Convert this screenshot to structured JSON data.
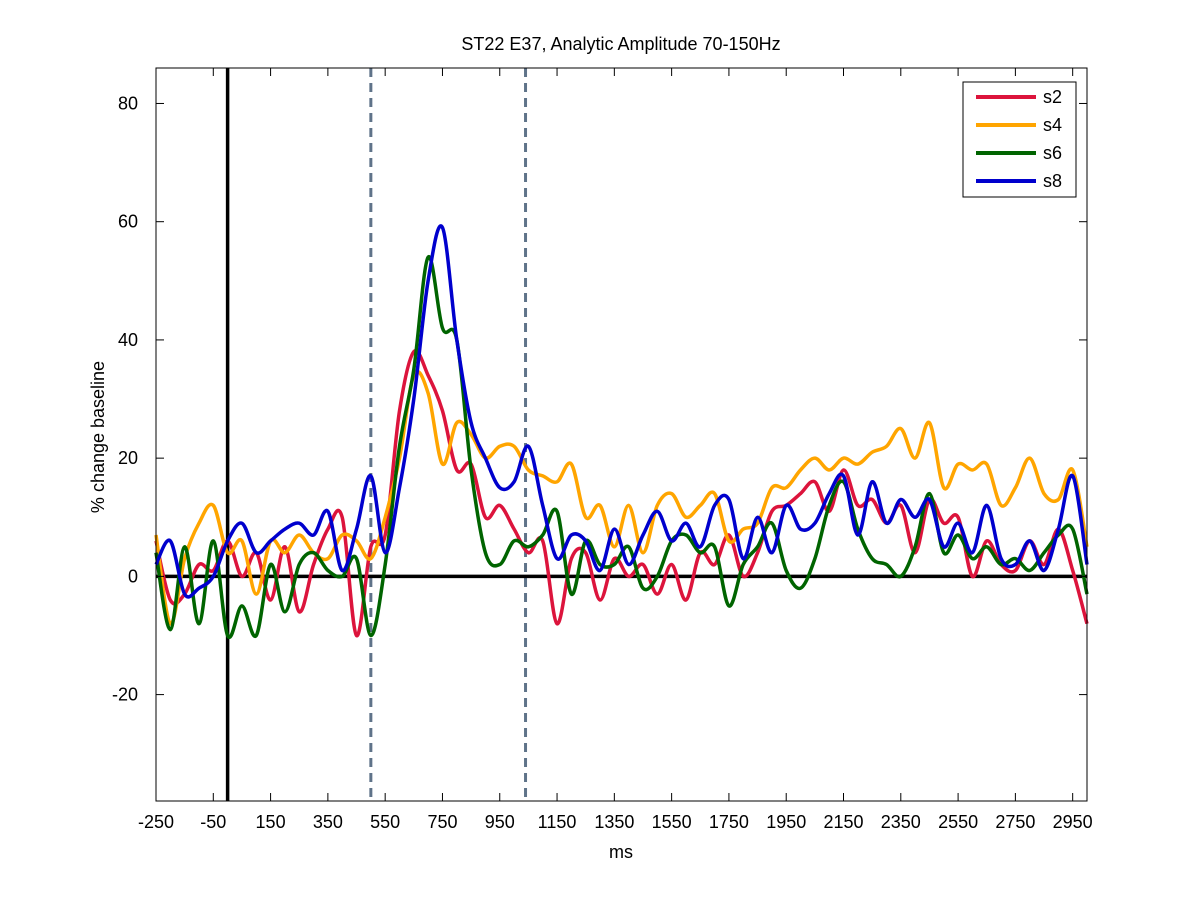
{
  "chart_data": {
    "type": "line",
    "title": "ST22 E37, Analytic Amplitude 70-150Hz",
    "xlabel": "ms",
    "ylabel": "% change baseline",
    "xlim": [
      -250,
      3000
    ],
    "ylim": [
      -38,
      86
    ],
    "xticks": [
      -250,
      -50,
      150,
      350,
      550,
      750,
      950,
      1150,
      1350,
      1550,
      1750,
      1950,
      2150,
      2350,
      2550,
      2750,
      2950
    ],
    "yticks": [
      -20,
      0,
      20,
      40,
      60,
      80
    ],
    "grid": false,
    "legend_position": "top-right",
    "reference_lines": {
      "zero_horizontal": 0,
      "solid_vertical_x": 0,
      "dashed_vertical_x": [
        500,
        1040
      ]
    },
    "x": [
      -250,
      -200,
      -150,
      -100,
      -50,
      0,
      50,
      100,
      150,
      200,
      250,
      300,
      350,
      400,
      450,
      500,
      550,
      600,
      650,
      700,
      750,
      800,
      850,
      900,
      950,
      1000,
      1050,
      1100,
      1150,
      1200,
      1250,
      1300,
      1350,
      1400,
      1450,
      1500,
      1550,
      1600,
      1650,
      1700,
      1750,
      1800,
      1850,
      1900,
      1950,
      2000,
      2050,
      2100,
      2150,
      2200,
      2250,
      2300,
      2350,
      2400,
      2450,
      2500,
      2550,
      2600,
      2650,
      2700,
      2750,
      2800,
      2850,
      2900,
      2950,
      3000
    ],
    "series": [
      {
        "name": "s2",
        "color": "#dc143c",
        "values": [
          6,
          -4,
          -3,
          2,
          1,
          6,
          0,
          4,
          -4,
          5,
          -6,
          2,
          8,
          10,
          -10,
          5,
          7,
          28,
          38,
          34,
          28,
          18,
          19,
          10,
          12,
          8,
          4,
          6,
          -8,
          3,
          4,
          -4,
          3,
          0,
          2,
          -3,
          2,
          -4,
          4,
          2,
          7,
          0,
          4,
          11,
          12,
          14,
          16,
          11,
          18,
          12,
          13,
          9,
          12,
          4,
          13,
          9,
          10,
          0,
          6,
          2,
          1,
          6,
          2,
          8,
          1,
          -8
        ]
      },
      {
        "name": "s4",
        "color": "#ffa500",
        "values": [
          7,
          -8,
          3,
          9,
          12,
          4,
          6,
          -3,
          6,
          4,
          7,
          4,
          3,
          7,
          6,
          3,
          10,
          20,
          34,
          31,
          19,
          26,
          24,
          20,
          22,
          22,
          18,
          17,
          16,
          19,
          10,
          12,
          5,
          12,
          4,
          12,
          14,
          10,
          12,
          14,
          6,
          8,
          9,
          15,
          15,
          18,
          20,
          18,
          20,
          19,
          21,
          22,
          25,
          20,
          26,
          15,
          19,
          18,
          19,
          12,
          15,
          20,
          14,
          13,
          18,
          5
        ]
      },
      {
        "name": "s6",
        "color": "#006400",
        "values": [
          4,
          -9,
          5,
          -8,
          6,
          -10,
          -5,
          -10,
          2,
          -6,
          2,
          4,
          1,
          0,
          3,
          -10,
          2,
          22,
          35,
          54,
          42,
          40,
          18,
          4,
          2,
          6,
          5,
          7,
          11,
          -3,
          6,
          2,
          2,
          5,
          -2,
          0,
          6,
          7,
          4,
          5,
          -5,
          2,
          5,
          9,
          1,
          -2,
          3,
          12,
          16,
          8,
          3,
          2,
          0,
          5,
          14,
          4,
          7,
          3,
          5,
          2,
          3,
          1,
          4,
          7,
          8,
          -3
        ]
      },
      {
        "name": "s8",
        "color": "#0000cd",
        "values": [
          2,
          6,
          -3,
          -2,
          0,
          6,
          9,
          4,
          6,
          8,
          9,
          7,
          11,
          1,
          8,
          17,
          4,
          15,
          30,
          50,
          59,
          40,
          26,
          20,
          15,
          16,
          22,
          12,
          3,
          7,
          6,
          1,
          8,
          2,
          7,
          11,
          6,
          9,
          5,
          12,
          13,
          3,
          10,
          4,
          12,
          8,
          9,
          14,
          17,
          7,
          16,
          9,
          13,
          10,
          13,
          5,
          9,
          4,
          12,
          3,
          2,
          6,
          1,
          8,
          17,
          2
        ]
      }
    ]
  }
}
